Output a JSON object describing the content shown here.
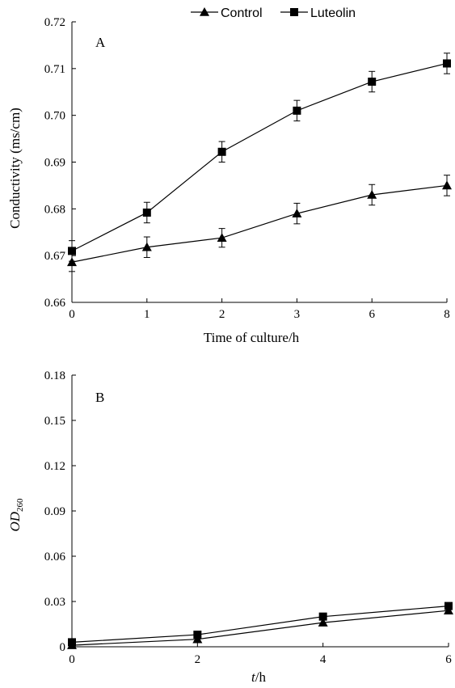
{
  "chart_data": [
    {
      "type": "line",
      "panel_label": "A",
      "xlabel": "Time of culture/h",
      "ylabel": "Conductivity (ms/cm)",
      "categories": [
        "0",
        "1",
        "2",
        "3",
        "6",
        "8"
      ],
      "ylim": [
        0.66,
        0.72
      ],
      "yticks": [
        "0.66",
        "0.67",
        "0.68",
        "0.69",
        "0.70",
        "0.71",
        "0.72"
      ],
      "legend": {
        "position": "top",
        "entries": [
          "Control",
          "Luteolin"
        ]
      },
      "grid": false,
      "series": [
        {
          "name": "Control",
          "marker": "triangle",
          "values": [
            0.6686,
            0.6718,
            0.6738,
            0.679,
            0.683,
            0.685
          ],
          "errors": [
            0.002,
            0.0022,
            0.002,
            0.0022,
            0.0022,
            0.0022
          ]
        },
        {
          "name": "Luteolin",
          "marker": "square",
          "values": [
            0.671,
            0.6792,
            0.6922,
            0.701,
            0.7072,
            0.7111
          ],
          "errors": [
            0.0022,
            0.0022,
            0.0022,
            0.0022,
            0.0022,
            0.0022
          ]
        }
      ]
    },
    {
      "type": "line",
      "panel_label": "B",
      "xlabel_italic": "t",
      "xlabel_rest": "/h",
      "ylabel_main": "OD",
      "ylabel_sub": "260",
      "x": [
        0,
        2,
        4,
        6
      ],
      "xticks": [
        "0",
        "2",
        "4",
        "6"
      ],
      "xlim": [
        0,
        6
      ],
      "ylim": [
        0,
        0.18
      ],
      "yticks": [
        "0",
        "0.03",
        "0.06",
        "0.09",
        "0.12",
        "0.15",
        "0.18"
      ],
      "grid": false,
      "series": [
        {
          "name": "Control",
          "marker": "triangle",
          "values": [
            0.001,
            0.005,
            0.016,
            0.024
          ]
        },
        {
          "name": "Luteolin",
          "marker": "square",
          "values": [
            0.003,
            0.008,
            0.02,
            0.027
          ]
        }
      ]
    }
  ]
}
